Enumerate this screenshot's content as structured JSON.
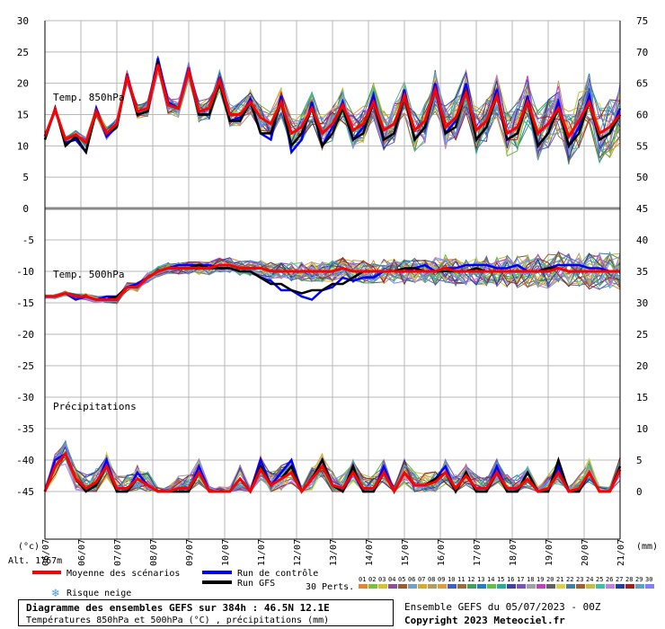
{
  "chart_data": {
    "type": "line",
    "dates": [
      "06/07",
      "06/07",
      "07/07",
      "08/07",
      "09/07",
      "10/07",
      "11/07",
      "12/07",
      "13/07",
      "14/07",
      "15/07",
      "16/07",
      "17/07",
      "18/07",
      "19/07",
      "20/07",
      "21/07"
    ],
    "left_ticks_temp850": [
      "30",
      "25",
      "20",
      "15",
      "10",
      "5",
      "0"
    ],
    "left_ticks_temp500": [
      "-5",
      "-10",
      "-15",
      "-20",
      "-25",
      "-30",
      "-35",
      "-40",
      "-45"
    ],
    "right_ticks_temp850": [
      "75",
      "70",
      "65",
      "60",
      "55",
      "50",
      "45"
    ],
    "right_ticks_lower": [
      "40",
      "35",
      "30",
      "25",
      "20",
      "15",
      "10",
      "5",
      "0"
    ],
    "left_unit": "(°c)",
    "right_unit": "(mm)",
    "altitude_label": "Alt. 1767m",
    "panel_labels": {
      "t850": "Temp. 850hPa",
      "t500": "Temp. 500hPa",
      "precip": "Précipitations"
    },
    "ylim": {
      "t850": [
        0,
        30
      ],
      "t500": [
        -50,
        -5
      ],
      "precip_mm": [
        0,
        40
      ]
    },
    "grid": true,
    "series": [
      {
        "name": "Moyenne des scénarios",
        "color": "#ff0000",
        "t850": [
          11.5,
          15.8,
          11,
          11.8,
          10.5,
          15.5,
          12,
          13.5,
          21,
          15.5,
          16,
          23,
          16.5,
          16,
          22,
          15.5,
          16,
          20.5,
          15,
          15,
          17,
          14.5,
          13.5,
          17,
          12,
          13,
          16,
          12,
          13.5,
          16.5,
          12.5,
          13.5,
          17,
          12.5,
          13.5,
          18,
          12.5,
          14,
          19,
          13,
          14.5,
          18.5,
          12.5,
          14,
          18,
          12,
          13,
          17,
          12,
          13.5,
          16,
          11.5,
          14,
          17,
          12,
          13,
          15
        ],
        "t500": [
          -14,
          -14,
          -13.5,
          -14,
          -14,
          -14.5,
          -14.5,
          -14.5,
          -12.5,
          -12.5,
          -11,
          -10,
          -9.5,
          -9.5,
          -9.5,
          -9.5,
          -9.5,
          -9,
          -9,
          -9.5,
          -9.5,
          -9.5,
          -10,
          -10,
          -10,
          -10,
          -10,
          -10,
          -10,
          -9.5,
          -10,
          -10,
          -10,
          -10,
          -10,
          -10,
          -10,
          -10,
          -10,
          -9.5,
          -10,
          -10,
          -10,
          -10,
          -10,
          -10,
          -10,
          -10,
          -10,
          -10,
          -9.5,
          -10,
          -10,
          -10,
          -10,
          -10,
          -10
        ],
        "precip": [
          0,
          4,
          6,
          2,
          0.5,
          1.5,
          4,
          0.5,
          0.5,
          2,
          1,
          0,
          0,
          0.5,
          0.5,
          3,
          0,
          0,
          0,
          2,
          0,
          3.5,
          1,
          2,
          3,
          0,
          2,
          4,
          1,
          0.5,
          3,
          0.5,
          0.5,
          3,
          0,
          3,
          1,
          1,
          1.5,
          3,
          0.5,
          2.5,
          0.5,
          0.5,
          3,
          0.5,
          0.5,
          2,
          0,
          0.5,
          3,
          0,
          0.5,
          3,
          0,
          0,
          3.5
        ]
      },
      {
        "name": "Run de contrôle",
        "color": "#0000ff",
        "t850": [
          11,
          16,
          10.5,
          11,
          9,
          16,
          11.5,
          13,
          21.5,
          15,
          15.5,
          24,
          17,
          16,
          22.5,
          15,
          15,
          21,
          14,
          14.5,
          17.5,
          12,
          11,
          18,
          9,
          11,
          17,
          10,
          13,
          17,
          11,
          13,
          18,
          11,
          12,
          19,
          11,
          13,
          20,
          12,
          14,
          20,
          11,
          13,
          19,
          11,
          12,
          18,
          10,
          12,
          17,
          10,
          13,
          18,
          11,
          12,
          16
        ],
        "t500": [
          -14,
          -14,
          -13.5,
          -14.5,
          -14,
          -14.5,
          -14,
          -14,
          -12.5,
          -12,
          -11,
          -10,
          -9.5,
          -9,
          -9,
          -9,
          -9,
          -9.5,
          -9.5,
          -10,
          -10,
          -11,
          -11.5,
          -13,
          -13,
          -14,
          -14.5,
          -13,
          -12.5,
          -11,
          -11.5,
          -11,
          -11,
          -10,
          -10,
          -10,
          -9.5,
          -9,
          -10,
          -9.5,
          -9.5,
          -9,
          -9,
          -9,
          -9.5,
          -9.5,
          -9,
          -10,
          -10,
          -9.5,
          -9,
          -9,
          -9,
          -9.5,
          -9.5,
          -10,
          -10
        ],
        "precip": [
          0,
          5,
          6,
          2,
          0,
          1,
          5,
          0,
          0,
          3,
          1,
          0,
          0,
          0,
          0,
          4,
          0,
          0,
          0,
          2,
          0,
          5,
          1,
          3,
          5,
          0,
          2,
          5,
          1,
          0,
          3,
          0,
          0,
          4,
          0,
          3,
          1,
          1,
          2,
          4,
          0,
          3,
          0,
          0,
          4,
          0,
          0,
          3,
          0,
          0,
          4,
          0,
          0,
          3,
          0,
          0,
          4
        ]
      },
      {
        "name": "Run GFS",
        "color": "#000000",
        "t850": [
          11,
          16,
          10,
          11.5,
          9,
          15.5,
          12,
          13,
          21,
          15,
          15.5,
          23.5,
          16.5,
          16,
          22,
          15,
          15,
          20,
          14,
          14,
          17,
          12,
          12,
          17,
          10,
          12,
          16,
          10,
          12,
          16,
          11,
          12,
          17,
          11,
          12,
          18,
          11,
          13,
          19,
          12,
          13,
          19,
          11,
          13,
          18,
          11,
          12,
          17,
          10,
          12,
          16,
          10,
          12,
          17,
          11,
          12,
          15
        ],
        "t500": [
          -14,
          -14,
          -13.5,
          -14,
          -14,
          -14.5,
          -14.5,
          -14,
          -12.5,
          -12.5,
          -11,
          -10,
          -9.5,
          -9.5,
          -9.5,
          -9,
          -9.5,
          -9.5,
          -9.5,
          -10,
          -10,
          -11,
          -12,
          -12,
          -13,
          -13.5,
          -13,
          -13,
          -12,
          -12,
          -11,
          -10,
          -10,
          -10,
          -10,
          -9.5,
          -9.5,
          -10,
          -10,
          -10,
          -10,
          -10,
          -9.5,
          -10,
          -10,
          -10,
          -10,
          -10,
          -10,
          -9.5,
          -9.5,
          -10,
          -10,
          -10,
          -10,
          -10,
          -10
        ],
        "precip": [
          0,
          4,
          6,
          2,
          0,
          1,
          4,
          0,
          0,
          2,
          1,
          0,
          0,
          0,
          0,
          3,
          0,
          0,
          0,
          2,
          0,
          4,
          1,
          2,
          4,
          0,
          2,
          5,
          1,
          0,
          4,
          0,
          0,
          3,
          0,
          3,
          1,
          1,
          2,
          3,
          0,
          3,
          0,
          0,
          3,
          0,
          0,
          3,
          0,
          0,
          5,
          0,
          0,
          3,
          0,
          0,
          4
        ]
      }
    ],
    "risk_snow_label": "Risque neige",
    "perturbation_label": "30 Perts.",
    "perturbation_numbers": [
      "01",
      "02",
      "03",
      "04",
      "05",
      "06",
      "07",
      "08",
      "09",
      "10",
      "11",
      "12",
      "13",
      "14",
      "15",
      "16",
      "17",
      "18",
      "19",
      "20",
      "21",
      "22",
      "23",
      "24",
      "25",
      "26",
      "27",
      "28",
      "29",
      "30"
    ],
    "perturbation_colors": [
      "#e8832a",
      "#7fbf3f",
      "#d4c42a",
      "#8c4fa0",
      "#a05a2c",
      "#6fa1c9",
      "#d9a92c",
      "#b0a060",
      "#e09a40",
      "#4060c0",
      "#9c6a3c",
      "#40a060",
      "#2080c0",
      "#60c040",
      "#20b090",
      "#4040a0",
      "#8050c0",
      "#a0a0a0",
      "#c040c0",
      "#606060",
      "#e0d040",
      "#4080a0",
      "#a06030",
      "#c0c040",
      "#40c0a0",
      "#c080e0",
      "#2040a0",
      "#a02020",
      "#60a0c0",
      "#8080ff"
    ]
  },
  "legend": {
    "mean": "Moyenne des scénarios",
    "control": "Run de contrôle",
    "gfs": "Run GFS"
  },
  "footer": {
    "title": "Diagramme des ensembles GEFS sur 384h : 46.5N 12.1E",
    "subtitle": "Températures 850hPa et 500hPa (°C) , précipitations (mm)",
    "run": "Ensemble GEFS du 05/07/2023 - 00Z",
    "copyright": "Copyright 2023 Meteociel.fr"
  }
}
